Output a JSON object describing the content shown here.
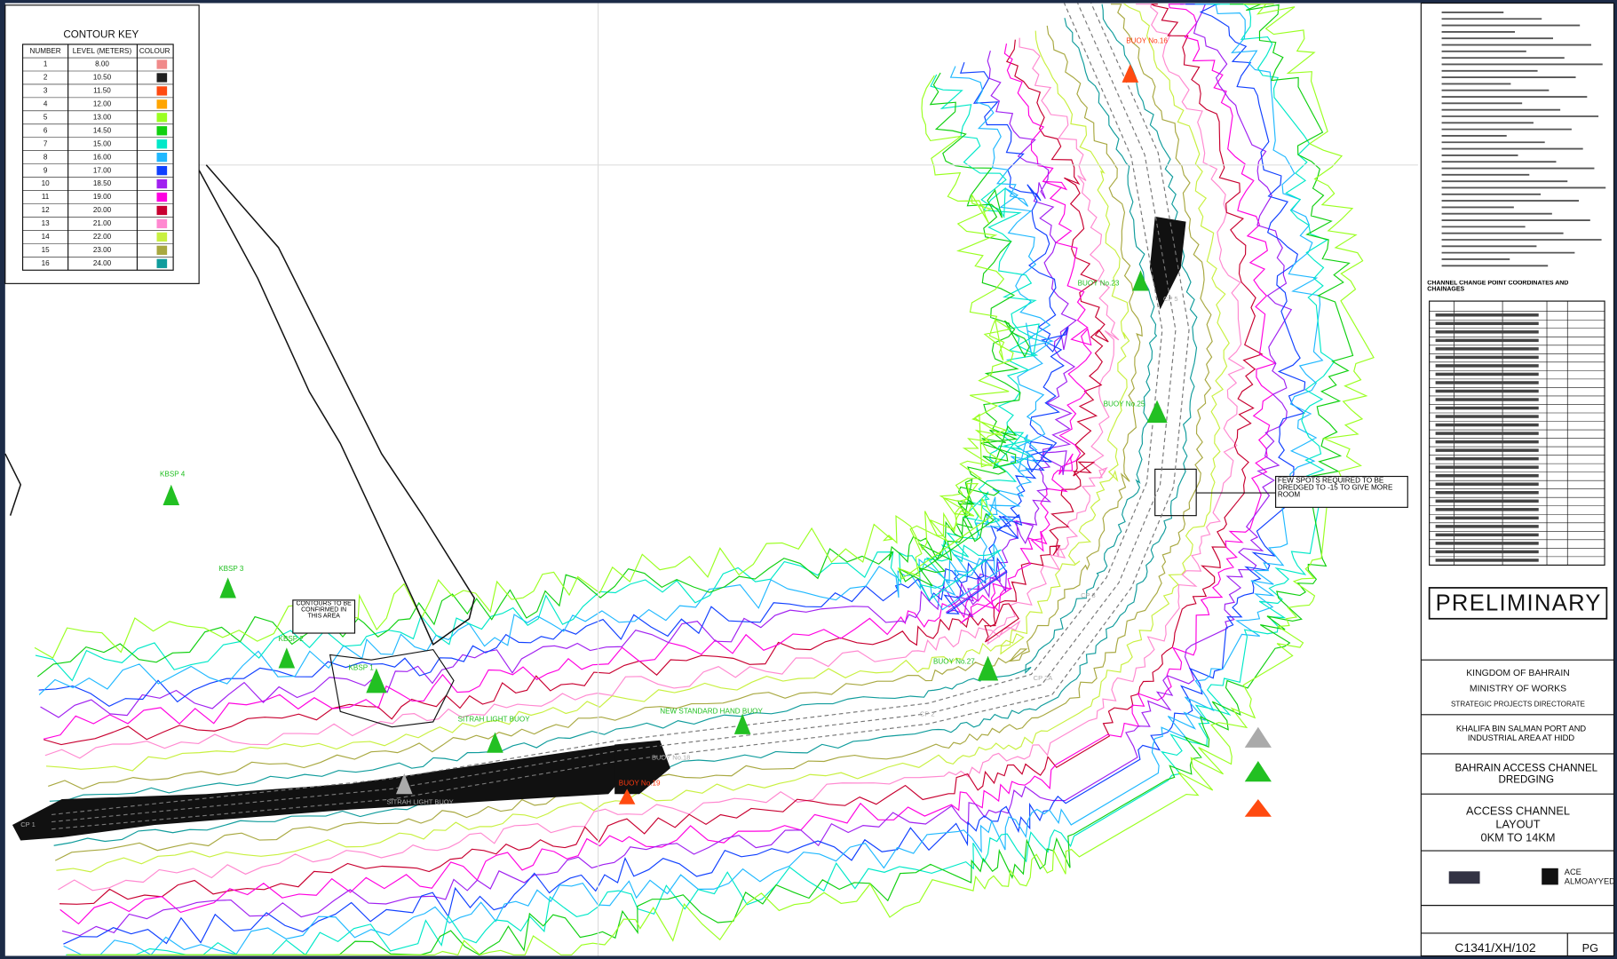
{
  "contour_key": {
    "title": "CONTOUR KEY",
    "headers": [
      "NUMBER",
      "LEVEL (METERS)",
      "COLOUR"
    ],
    "rows": [
      {
        "number": "1",
        "level": "8.00",
        "colour": "#f08a8a"
      },
      {
        "number": "2",
        "level": "10.50",
        "colour": "#202020"
      },
      {
        "number": "3",
        "level": "11.50",
        "colour": "#ff4a10"
      },
      {
        "number": "4",
        "level": "12.00",
        "colour": "#ffa500"
      },
      {
        "number": "5",
        "level": "13.00",
        "colour": "#9aff20"
      },
      {
        "number": "6",
        "level": "14.50",
        "colour": "#10d010"
      },
      {
        "number": "7",
        "level": "15.00",
        "colour": "#00e8c8"
      },
      {
        "number": "8",
        "level": "16.00",
        "colour": "#20b8ff"
      },
      {
        "number": "9",
        "level": "17.00",
        "colour": "#1040ff"
      },
      {
        "number": "10",
        "level": "18.50",
        "colour": "#a020f0"
      },
      {
        "number": "11",
        "level": "19.00",
        "colour": "#ff00e0"
      },
      {
        "number": "12",
        "level": "20.00",
        "colour": "#c80030"
      },
      {
        "number": "13",
        "level": "21.00",
        "colour": "#ff88d0"
      },
      {
        "number": "14",
        "level": "22.00",
        "colour": "#c8f040"
      },
      {
        "number": "15",
        "level": "23.00",
        "colour": "#a8a840"
      },
      {
        "number": "16",
        "level": "24.00",
        "colour": "#109c9c"
      }
    ]
  },
  "annotations": {
    "contours_note": "CONTOURS TO BE CONFIRMED IN THIS AREA",
    "spots_note": "FEW SPOTS REQUIRED TO BE DREDGED TO -15 TO GIVE MORE ROOM"
  },
  "buoys": [
    "BUOY No.16",
    "BUOY No.18",
    "BUOY No.19",
    "BUOY No.23",
    "BUOY No.25",
    "BUOY No.27",
    "KBSP 4",
    "KBSP 3",
    "KBSP 2",
    "KBSP 1",
    "SITRAH LIGHT BUOY",
    "NEW STANDARD HAND BUOY"
  ],
  "change_points": [
    "CP 1",
    "CP 2",
    "CP 2A",
    "CP 3",
    "CP 5"
  ],
  "side_panel": {
    "table_title": "CHANNEL CHANGE POINT COORDINATES AND CHAINAGES",
    "stamp": "PRELIMINARY",
    "client": [
      "KINGDOM OF BAHRAIN",
      "MINISTRY OF WORKS",
      "STRATEGIC PROJECTS DIRECTORATE"
    ],
    "project": "KHALIFA BIN SALMAN PORT AND INDUSTRIAL AREA AT HIDD",
    "subject": "BAHRAIN ACCESS CHANNEL DREDGING",
    "title": [
      "ACCESS CHANNEL",
      "LAYOUT",
      "0KM TO 14KM"
    ],
    "consultant": [
      "ACE",
      "ALMOAYYED"
    ],
    "drawing_no": "C1341/XH/102",
    "revision": "PG"
  }
}
